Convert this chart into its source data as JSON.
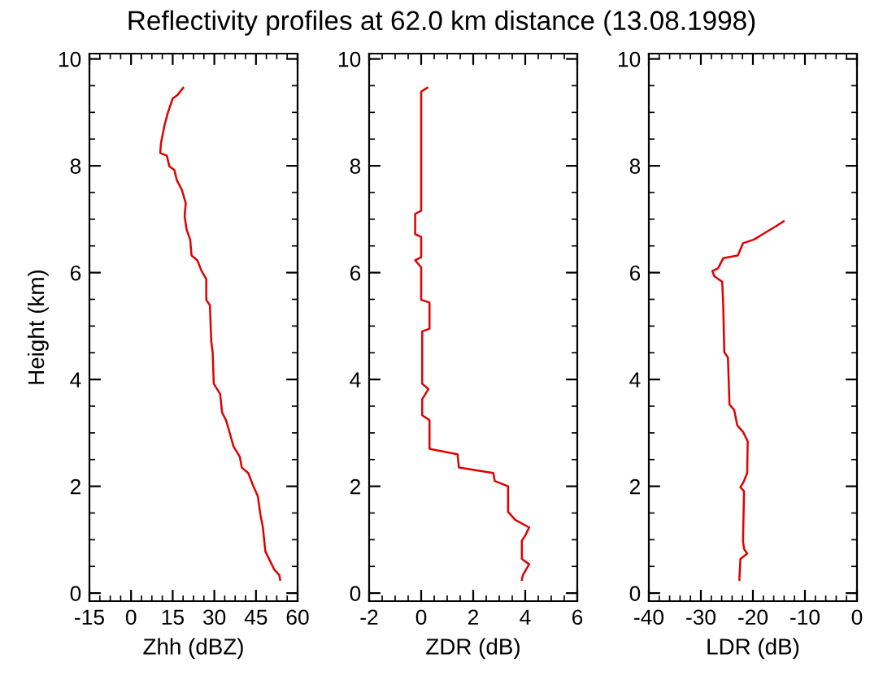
{
  "chart_data": [
    {
      "type": "line",
      "title": "Reflectivity profiles at 62.0 km distance (13.08.1998)",
      "xlabel": "Zhh (dBZ)",
      "ylabel": "Height (km)",
      "xlim": [
        -15,
        60
      ],
      "xticks": [
        -15,
        0,
        15,
        30,
        45,
        60
      ],
      "ylim": [
        -0.15,
        10.1
      ],
      "yticks": [
        0,
        2,
        4,
        6,
        8,
        10
      ],
      "grid": false,
      "legend": false,
      "marker": "none",
      "line_style": "solid",
      "series": [
        {
          "color": "#e00000",
          "x": [
            18.8,
            16.8,
            15,
            13.3,
            12.1,
            10.8,
            10.5,
            12.9,
            13.8,
            15.6,
            16.5,
            18.3,
            19.7,
            19.3,
            20,
            21.3,
            21.8,
            23.9,
            25.4,
            27.1,
            27.1,
            28.4,
            28.9,
            29.4,
            29.8,
            32.1,
            32.8,
            34.2,
            35.6,
            36.9,
            39.2,
            39.9,
            42.2,
            44.0,
            45.7,
            46.6,
            47.5,
            48.4,
            50.2,
            51.6,
            53.4,
            53.7
          ],
          "values": [
            9.46,
            9.33,
            9.26,
            9.0,
            8.77,
            8.43,
            8.24,
            8.19,
            7.99,
            7.92,
            7.73,
            7.55,
            7.3,
            7.06,
            6.81,
            6.62,
            6.32,
            6.23,
            6.03,
            5.88,
            5.49,
            5.39,
            4.71,
            4.51,
            3.92,
            3.73,
            3.38,
            3.24,
            2.99,
            2.75,
            2.55,
            2.35,
            2.25,
            2.01,
            1.81,
            1.47,
            1.23,
            0.78,
            0.59,
            0.44,
            0.34,
            0.25
          ]
        }
      ]
    },
    {
      "type": "line",
      "xlabel": "ZDR (dB)",
      "xlim": [
        -2,
        6
      ],
      "xticks": [
        -2,
        0,
        2,
        4,
        6
      ],
      "ylim": [
        -0.15,
        10.1
      ],
      "yticks": [
        0,
        2,
        4,
        6,
        8,
        10
      ],
      "grid": false,
      "legend": false,
      "marker": "none",
      "line_style": "solid",
      "series": [
        {
          "color": "#e00000",
          "x": [
            0.23,
            0,
            0,
            -0.23,
            -0.23,
            0,
            0,
            -0.23,
            0,
            0,
            0.32,
            0.32,
            0.04,
            0.04,
            0.28,
            0.04,
            0.04,
            0.32,
            0.32,
            1.4,
            1.45,
            2.77,
            2.83,
            3.34,
            3.34,
            3.62,
            4.15,
            4.0,
            3.87,
            3.87,
            4.15,
            3.91,
            3.87
          ],
          "values": [
            9.46,
            9.39,
            7.16,
            7.1,
            6.72,
            6.67,
            6.29,
            6.23,
            6.1,
            5.49,
            5.44,
            4.95,
            4.9,
            3.92,
            3.82,
            3.63,
            3.33,
            3.24,
            2.7,
            2.6,
            2.35,
            2.25,
            2.1,
            2.0,
            1.52,
            1.37,
            1.23,
            1.08,
            0.98,
            0.64,
            0.54,
            0.34,
            0.25
          ]
        }
      ]
    },
    {
      "type": "line",
      "xlabel": "LDR (dB)",
      "xlim": [
        -40,
        0
      ],
      "xticks": [
        -40,
        -30,
        -20,
        -10,
        0
      ],
      "ylim": [
        -0.15,
        10.1
      ],
      "yticks": [
        0,
        2,
        4,
        6,
        8,
        10
      ],
      "grid": false,
      "legend": false,
      "marker": "none",
      "line_style": "solid",
      "series": [
        {
          "color": "#e00000",
          "x": [
            -14.1,
            -15.7,
            -18.1,
            -19.8,
            -21.9,
            -22.9,
            -25.7,
            -26.7,
            -27.8,
            -27.4,
            -25.9,
            -25.7,
            -25.5,
            -24.8,
            -24.5,
            -23.6,
            -23.0,
            -21.9,
            -21.0,
            -21.1,
            -21.7,
            -22.4,
            -21.7,
            -21.9,
            -21.7,
            -21.1,
            -22.4,
            -22.6
          ],
          "values": [
            6.96,
            6.86,
            6.72,
            6.62,
            6.55,
            6.32,
            6.27,
            6.08,
            6.03,
            5.93,
            5.83,
            5.39,
            4.51,
            4.41,
            3.53,
            3.43,
            3.14,
            3.02,
            2.84,
            2.25,
            2.1,
            1.98,
            1.91,
            0.98,
            0.83,
            0.74,
            0.64,
            0.25
          ]
        }
      ]
    }
  ]
}
